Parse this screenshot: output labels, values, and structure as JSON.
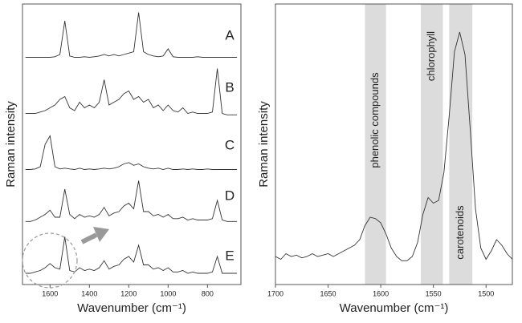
{
  "chart_data": [
    {
      "type": "line",
      "x_label": "Wavenumber (cm⁻¹)",
      "y_label": "Raman intensity",
      "xlim": [
        1740,
        630
      ],
      "ylim": [
        0,
        10
      ],
      "xticks": [
        1600,
        1400,
        1200,
        1000,
        800
      ],
      "x": [
        1725,
        1700,
        1675,
        1650,
        1625,
        1600,
        1575,
        1550,
        1525,
        1500,
        1475,
        1450,
        1425,
        1400,
        1375,
        1350,
        1325,
        1300,
        1275,
        1250,
        1225,
        1200,
        1175,
        1150,
        1125,
        1100,
        1075,
        1050,
        1025,
        1000,
        975,
        950,
        925,
        900,
        875,
        850,
        825,
        800,
        775,
        750,
        725,
        700,
        675,
        650
      ],
      "series": [
        {
          "name": "A",
          "color": "#333333",
          "values": [
            8.1,
            8.1,
            8.1,
            8.1,
            8.1,
            8.1,
            8.12,
            8.2,
            9.4,
            8.15,
            8.1,
            8.1,
            8.12,
            8.1,
            8.12,
            8.15,
            8.2,
            8.15,
            8.2,
            8.15,
            8.2,
            8.25,
            8.3,
            9.7,
            8.3,
            8.2,
            8.15,
            8.12,
            8.15,
            8.4,
            8.12,
            8.1,
            8.1,
            8.1,
            8.1,
            8.12,
            8.1,
            8.1,
            8.1,
            8.1,
            8.1,
            8.1,
            8.1,
            8.1
          ]
        },
        {
          "name": "B",
          "color": "#333333",
          "values": [
            6.1,
            6.1,
            6.1,
            6.15,
            6.2,
            6.3,
            6.4,
            6.6,
            6.7,
            6.3,
            6.2,
            6.5,
            6.3,
            6.4,
            6.3,
            6.5,
            7.3,
            6.4,
            6.5,
            6.6,
            6.8,
            6.9,
            6.6,
            6.7,
            6.5,
            6.6,
            6.3,
            6.4,
            6.2,
            6.4,
            6.2,
            6.15,
            6.3,
            6.1,
            6.15,
            6.1,
            6.1,
            6.1,
            6.15,
            7.7,
            6.1,
            6.05,
            6.05,
            6.05
          ]
        },
        {
          "name": "C",
          "color": "#333333",
          "values": [
            4.1,
            4.1,
            4.12,
            4.2,
            5.0,
            5.3,
            4.2,
            4.12,
            4.15,
            4.12,
            4.1,
            4.15,
            4.1,
            4.12,
            4.1,
            4.12,
            4.15,
            4.12,
            4.15,
            4.2,
            4.3,
            4.35,
            4.25,
            4.3,
            4.2,
            4.15,
            4.12,
            4.15,
            4.1,
            4.15,
            4.1,
            4.1,
            4.12,
            4.1,
            4.12,
            4.1,
            4.1,
            4.12,
            4.1,
            4.1,
            4.1,
            4.1,
            4.1,
            4.1
          ]
        },
        {
          "name": "D",
          "color": "#333333",
          "values": [
            2.25,
            2.25,
            2.3,
            2.4,
            2.5,
            2.65,
            2.4,
            2.4,
            3.4,
            2.5,
            2.35,
            2.5,
            2.4,
            2.45,
            2.4,
            2.5,
            2.75,
            2.45,
            2.55,
            2.6,
            2.8,
            2.9,
            2.7,
            3.7,
            2.6,
            2.6,
            2.45,
            2.5,
            2.4,
            2.5,
            2.35,
            2.35,
            2.4,
            2.3,
            2.35,
            2.3,
            2.3,
            2.3,
            2.35,
            3.0,
            2.3,
            2.25,
            2.25,
            2.25
          ]
        },
        {
          "name": "E",
          "color": "#333333",
          "values": [
            0.4,
            0.4,
            0.45,
            0.5,
            0.6,
            0.75,
            0.6,
            0.55,
            1.7,
            0.5,
            0.45,
            0.6,
            0.5,
            0.55,
            0.5,
            0.6,
            0.85,
            0.55,
            0.65,
            0.7,
            0.9,
            1.0,
            0.8,
            1.4,
            0.7,
            0.7,
            0.55,
            0.6,
            0.5,
            0.6,
            0.45,
            0.45,
            0.5,
            0.4,
            0.45,
            0.4,
            0.4,
            0.4,
            0.45,
            1.0,
            0.4,
            0.4,
            0.4,
            0.4
          ]
        }
      ]
    },
    {
      "type": "line",
      "x_label": "Wavenumber (cm⁻¹)",
      "y_label": "Raman intensity",
      "xlim": [
        1700,
        1475
      ],
      "ylim": [
        0,
        10
      ],
      "xticks": [
        1700,
        1650,
        1600,
        1550,
        1500
      ],
      "bands": [
        {
          "label": "phenolic compounds",
          "range": [
            1615,
            1595
          ]
        },
        {
          "label": "chlorophyll",
          "range": [
            1562,
            1541
          ]
        },
        {
          "label": "carotenoids",
          "range": [
            1535,
            1513
          ]
        }
      ],
      "x": [
        1700,
        1695,
        1690,
        1685,
        1680,
        1675,
        1670,
        1665,
        1660,
        1655,
        1650,
        1645,
        1640,
        1635,
        1630,
        1625,
        1620,
        1615,
        1610,
        1605,
        1600,
        1595,
        1590,
        1585,
        1580,
        1575,
        1570,
        1565,
        1560,
        1555,
        1550,
        1545,
        1540,
        1535,
        1530,
        1525,
        1520,
        1515,
        1510,
        1505,
        1500,
        1495,
        1490,
        1485,
        1480,
        1475
      ],
      "series": [
        {
          "color": "#333333",
          "values": [
            1.0,
            0.9,
            1.1,
            1.0,
            1.05,
            0.95,
            1.0,
            1.1,
            1.0,
            1.05,
            1.1,
            1.0,
            1.1,
            1.2,
            1.3,
            1.4,
            1.6,
            2.1,
            2.4,
            2.35,
            2.2,
            1.8,
            1.3,
            1.0,
            0.85,
            0.85,
            1.0,
            1.5,
            2.5,
            3.1,
            2.9,
            3.0,
            4.0,
            6.0,
            8.3,
            9.0,
            8.2,
            5.5,
            2.7,
            1.3,
            0.9,
            1.2,
            1.6,
            1.4,
            1.1,
            0.9
          ]
        }
      ]
    }
  ]
}
